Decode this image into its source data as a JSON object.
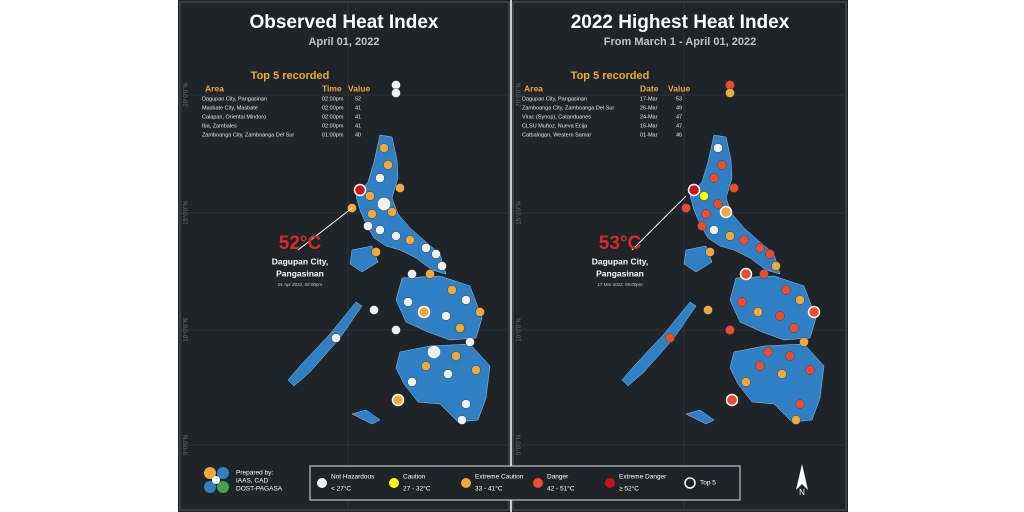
{
  "left_panel": {
    "title": "Observed Heat Index",
    "subtitle": "April 01, 2022",
    "top5": {
      "heading": "Top 5 recorded",
      "columns": [
        "Area",
        "Time",
        "Value"
      ],
      "rows": [
        [
          "Dagupan City, Pangasinan",
          "02:00pm",
          52
        ],
        [
          "Masbate City, Masbate",
          "02:00pm",
          41
        ],
        [
          "Calapan, Oriental Mindoro",
          "02:00pm",
          41
        ],
        [
          "Iba, Zambales",
          "02:00pm",
          41
        ],
        [
          "Zamboanga City, Zamboanga Del Sur",
          "01:00pm",
          40
        ]
      ]
    },
    "callout": {
      "temperature": "52°C",
      "place_line1": "Dagupan City,",
      "place_line2": "Pangasinan",
      "date": "01 Apr 2022, 02:00pm"
    }
  },
  "right_panel": {
    "title": "2022 Highest Heat Index",
    "subtitle": "From March 1 - April 01, 2022",
    "top5": {
      "heading": "Top 5 recorded",
      "columns": [
        "Area",
        "Date",
        "Value"
      ],
      "rows": [
        [
          "Dagupan City, Pangasinan",
          "17-Mar",
          53
        ],
        [
          "Zamboanga City, Zamboanga Del Sur",
          "26-Mar",
          49
        ],
        [
          "Virac (Synop), Catanduanes",
          "24-Mar",
          47
        ],
        [
          "CLSU Muñoz, Nueva Ecija",
          "16-Mar",
          47
        ],
        [
          "Catbalogan, Western Samar",
          "01-Mar",
          46
        ]
      ]
    },
    "callout": {
      "temperature": "53°C",
      "place_line1": "Dagupan City,",
      "place_line2": "Pangasinan",
      "date": "17 Mar 2022, 05:00pm"
    }
  },
  "coordinates": {
    "lat": [
      "20°0'0\"N",
      "15°0'0\"N",
      "10°0'0\"N",
      "5°0'0\"N"
    ]
  },
  "legend": {
    "items": [
      {
        "name": "Not Hazardous",
        "range": "< 27°C"
      },
      {
        "name": "Caution",
        "range": "27 - 32°C"
      },
      {
        "name": "Extreme Caution",
        "range": "33 - 41°C"
      },
      {
        "name": "Danger",
        "range": "42 - 51°C"
      },
      {
        "name": "Extreme Danger",
        "range": "≥ 52°C"
      }
    ],
    "top5": "Top 5"
  },
  "credit": {
    "line1": "Prepared by:",
    "line2": "IAAS, CAD",
    "line3": "DOST-PAGASA"
  },
  "north": "N"
}
